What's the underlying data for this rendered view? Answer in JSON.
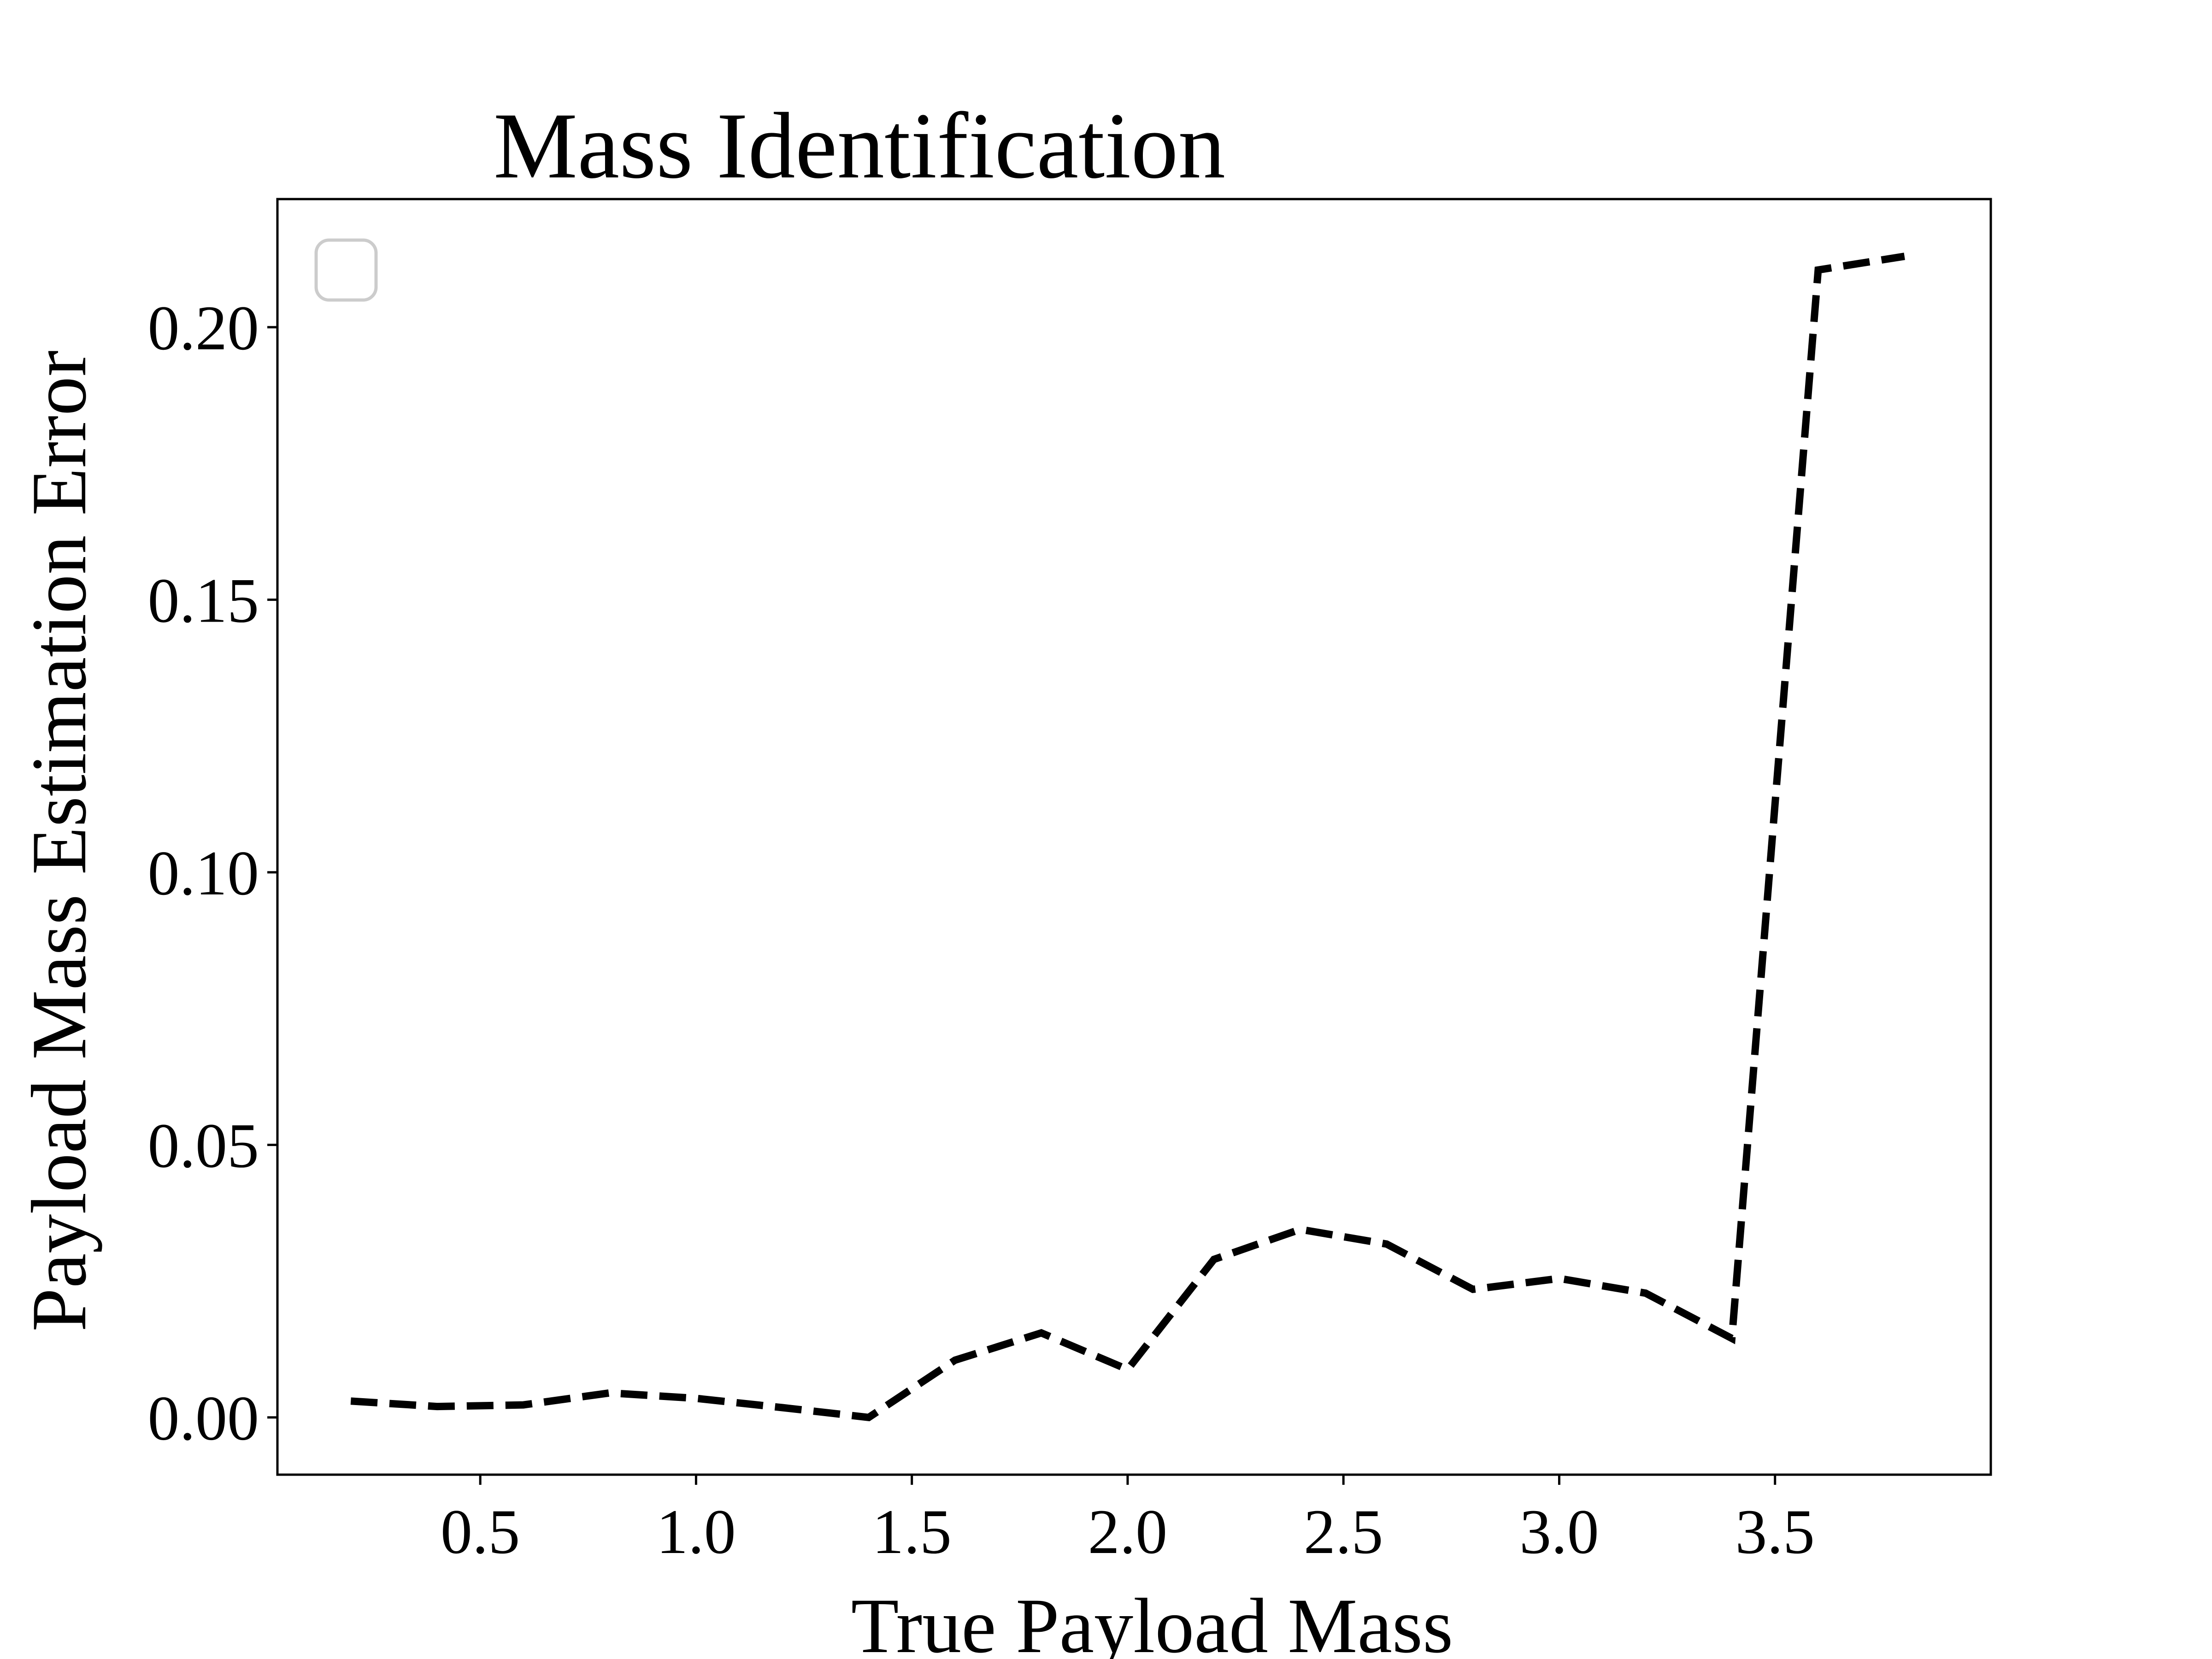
{
  "chart_data": {
    "type": "line",
    "title": "Mass Identification",
    "xlabel": "True Payload Mass",
    "ylabel": "Payload Mass Estimation Error",
    "xlim": [
      0.03,
      4.0
    ],
    "ylim": [
      -0.0105,
      0.2235
    ],
    "xticks": [
      0.5,
      1.0,
      1.5,
      2.0,
      2.5,
      3.0,
      3.5
    ],
    "xtick_labels": [
      "0.5",
      "1.0",
      "1.5",
      "2.0",
      "2.5",
      "3.0",
      "3.5"
    ],
    "yticks": [
      0.0,
      0.05,
      0.1,
      0.15,
      0.2
    ],
    "ytick_labels": [
      "0.00",
      "0.05",
      "0.10",
      "0.15",
      "0.20"
    ],
    "grid": false,
    "legend": {
      "placement": "upper-left",
      "entries": []
    },
    "series": [
      {
        "line_style": "dashed",
        "color": "#000000",
        "x": [
          0.2,
          0.4,
          0.6,
          0.8,
          1.0,
          1.2,
          1.4,
          1.6,
          1.8,
          2.0,
          2.2,
          2.4,
          2.6,
          2.8,
          3.0,
          3.2,
          3.4,
          3.6,
          3.8
        ],
        "y": [
          0.003,
          0.002,
          0.0023,
          0.0045,
          0.0035,
          0.0018,
          0.0,
          0.0105,
          0.0155,
          0.0088,
          0.029,
          0.0345,
          0.0318,
          0.0235,
          0.0255,
          0.0228,
          0.0145,
          0.2105,
          0.213
        ]
      }
    ]
  }
}
